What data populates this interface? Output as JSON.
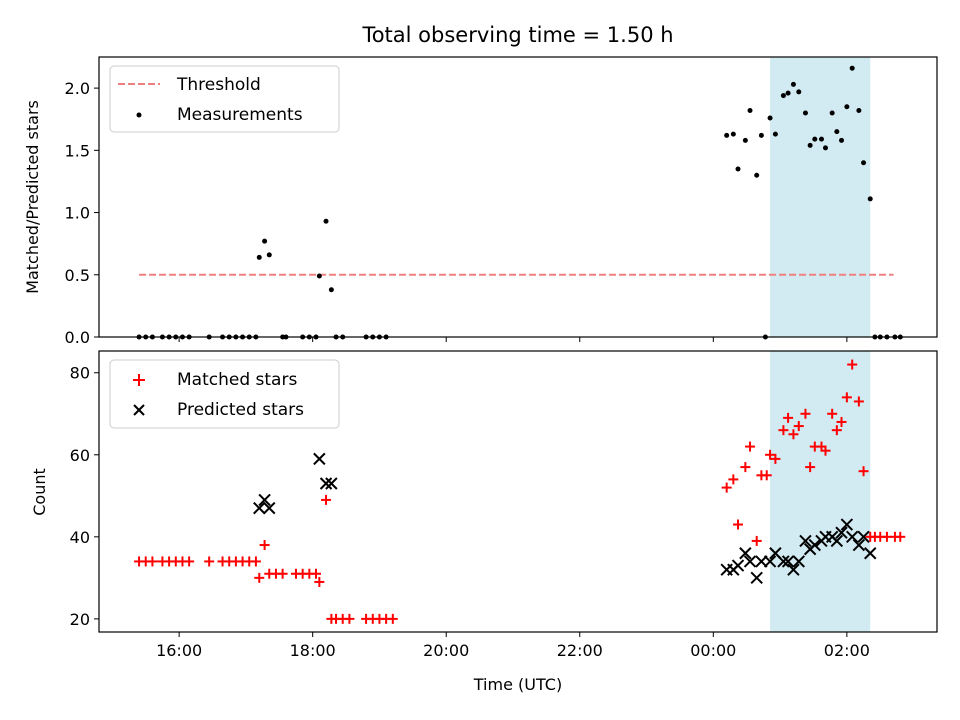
{
  "chart_data": [
    {
      "type": "scatter",
      "title": "Total observing time = 1.50 h",
      "ylabel": "Matched/Predicted stars",
      "xlabel": "",
      "xlim": [
        14.8,
        27.35
      ],
      "ylim": [
        0,
        2.25
      ],
      "yticks": [
        "0.0",
        "0.5",
        "1.0",
        "1.5",
        "2.0"
      ],
      "ytick_values": [
        0,
        0.5,
        1.0,
        1.5,
        2.0
      ],
      "legend_position": "upper-left",
      "threshold": {
        "name": "Threshold",
        "value": 0.5,
        "x_range": [
          15.4,
          26.7
        ],
        "color": "#f08080"
      },
      "highlight": {
        "x_range": [
          24.85,
          26.35
        ],
        "color": "#add8e6"
      },
      "series": [
        {
          "name": "Measurements",
          "color": "#000000",
          "points": [
            [
              15.4,
              0
            ],
            [
              15.5,
              0
            ],
            [
              15.6,
              0
            ],
            [
              15.75,
              0
            ],
            [
              15.85,
              0
            ],
            [
              15.95,
              0
            ],
            [
              16.05,
              0
            ],
            [
              16.15,
              0
            ],
            [
              16.45,
              0
            ],
            [
              16.65,
              0
            ],
            [
              16.75,
              0
            ],
            [
              16.85,
              0
            ],
            [
              16.95,
              0
            ],
            [
              17.05,
              0
            ],
            [
              17.15,
              0
            ],
            [
              17.2,
              0.64
            ],
            [
              17.28,
              0.77
            ],
            [
              17.35,
              0.66
            ],
            [
              17.55,
              0
            ],
            [
              17.6,
              0
            ],
            [
              17.85,
              0
            ],
            [
              17.95,
              0
            ],
            [
              18.05,
              0
            ],
            [
              18.1,
              0.49
            ],
            [
              18.2,
              0.93
            ],
            [
              18.28,
              0.38
            ],
            [
              18.35,
              0
            ],
            [
              18.45,
              0
            ],
            [
              18.8,
              0
            ],
            [
              18.9,
              0
            ],
            [
              19.0,
              0
            ],
            [
              19.1,
              0
            ],
            [
              24.2,
              1.62
            ],
            [
              24.3,
              1.63
            ],
            [
              24.37,
              1.35
            ],
            [
              24.48,
              1.58
            ],
            [
              24.55,
              1.82
            ],
            [
              24.65,
              1.3
            ],
            [
              24.72,
              1.62
            ],
            [
              24.78,
              0
            ],
            [
              24.85,
              1.76
            ],
            [
              24.93,
              1.63
            ],
            [
              25.05,
              1.94
            ],
            [
              25.12,
              1.96
            ],
            [
              25.2,
              2.03
            ],
            [
              25.28,
              1.97
            ],
            [
              25.38,
              1.8
            ],
            [
              25.45,
              1.54
            ],
            [
              25.52,
              1.59
            ],
            [
              25.62,
              1.59
            ],
            [
              25.68,
              1.52
            ],
            [
              25.78,
              1.8
            ],
            [
              25.85,
              1.65
            ],
            [
              25.92,
              1.58
            ],
            [
              26.0,
              1.85
            ],
            [
              26.08,
              2.16
            ],
            [
              26.18,
              1.82
            ],
            [
              26.25,
              1.4
            ],
            [
              26.35,
              1.11
            ],
            [
              26.42,
              0
            ],
            [
              26.5,
              0
            ],
            [
              26.6,
              0
            ],
            [
              26.72,
              0
            ],
            [
              26.8,
              0
            ]
          ]
        }
      ]
    },
    {
      "type": "scatter",
      "title": "",
      "ylabel": "Count",
      "xlabel": "Time (UTC)",
      "xlim": [
        14.8,
        27.35
      ],
      "ylim": [
        16.8,
        85.3
      ],
      "yticks": [
        "20",
        "40",
        "60",
        "80"
      ],
      "ytick_values": [
        20,
        40,
        60,
        80
      ],
      "xticks": [
        "16:00",
        "18:00",
        "20:00",
        "22:00",
        "00:00",
        "02:00"
      ],
      "xtick_values": [
        16,
        18,
        20,
        22,
        24,
        26
      ],
      "legend_position": "upper-left",
      "highlight": {
        "x_range": [
          24.85,
          26.35
        ],
        "color": "#add8e6"
      },
      "series": [
        {
          "name": "Matched stars",
          "color": "#ff0000",
          "marker": "plus",
          "points": [
            [
              15.4,
              34
            ],
            [
              15.5,
              34
            ],
            [
              15.6,
              34
            ],
            [
              15.75,
              34
            ],
            [
              15.85,
              34
            ],
            [
              15.95,
              34
            ],
            [
              16.05,
              34
            ],
            [
              16.15,
              34
            ],
            [
              16.45,
              34
            ],
            [
              16.65,
              34
            ],
            [
              16.75,
              34
            ],
            [
              16.85,
              34
            ],
            [
              16.95,
              34
            ],
            [
              17.05,
              34
            ],
            [
              17.15,
              34
            ],
            [
              17.2,
              30
            ],
            [
              17.28,
              38
            ],
            [
              17.35,
              31
            ],
            [
              17.45,
              31
            ],
            [
              17.55,
              31
            ],
            [
              17.75,
              31
            ],
            [
              17.85,
              31
            ],
            [
              17.95,
              31
            ],
            [
              18.05,
              31
            ],
            [
              18.1,
              29
            ],
            [
              18.2,
              49
            ],
            [
              18.28,
              20
            ],
            [
              18.35,
              20
            ],
            [
              18.45,
              20
            ],
            [
              18.55,
              20
            ],
            [
              18.8,
              20
            ],
            [
              18.9,
              20
            ],
            [
              19.0,
              20
            ],
            [
              19.1,
              20
            ],
            [
              19.2,
              20
            ],
            [
              24.2,
              52
            ],
            [
              24.3,
              54
            ],
            [
              24.37,
              43
            ],
            [
              24.48,
              57
            ],
            [
              24.55,
              62
            ],
            [
              24.65,
              39
            ],
            [
              24.72,
              55
            ],
            [
              24.8,
              55
            ],
            [
              24.85,
              60
            ],
            [
              24.93,
              59
            ],
            [
              25.05,
              66
            ],
            [
              25.12,
              69
            ],
            [
              25.2,
              65
            ],
            [
              25.28,
              67
            ],
            [
              25.38,
              70
            ],
            [
              25.45,
              57
            ],
            [
              25.52,
              62
            ],
            [
              25.62,
              62
            ],
            [
              25.68,
              61
            ],
            [
              25.78,
              70
            ],
            [
              25.85,
              66
            ],
            [
              25.92,
              68
            ],
            [
              26.0,
              74
            ],
            [
              26.08,
              82
            ],
            [
              26.18,
              73
            ],
            [
              26.25,
              56
            ],
            [
              26.35,
              40
            ],
            [
              26.42,
              40
            ],
            [
              26.5,
              40
            ],
            [
              26.6,
              40
            ],
            [
              26.72,
              40
            ],
            [
              26.8,
              40
            ]
          ]
        },
        {
          "name": "Predicted stars",
          "color": "#000000",
          "marker": "x",
          "points": [
            [
              17.2,
              47
            ],
            [
              17.28,
              49
            ],
            [
              17.35,
              47
            ],
            [
              18.1,
              59
            ],
            [
              18.2,
              53
            ],
            [
              18.28,
              53
            ],
            [
              24.2,
              32
            ],
            [
              24.3,
              32
            ],
            [
              24.37,
              33
            ],
            [
              24.48,
              36
            ],
            [
              24.55,
              34
            ],
            [
              24.65,
              30
            ],
            [
              24.72,
              34
            ],
            [
              24.85,
              34
            ],
            [
              24.93,
              36
            ],
            [
              25.05,
              34
            ],
            [
              25.12,
              34
            ],
            [
              25.2,
              32
            ],
            [
              25.28,
              34
            ],
            [
              25.38,
              39
            ],
            [
              25.45,
              37
            ],
            [
              25.52,
              38
            ],
            [
              25.62,
              39
            ],
            [
              25.68,
              40
            ],
            [
              25.78,
              40
            ],
            [
              25.85,
              39
            ],
            [
              25.92,
              41
            ],
            [
              26.0,
              43
            ],
            [
              26.08,
              40
            ],
            [
              26.18,
              38
            ],
            [
              26.25,
              40
            ],
            [
              26.35,
              36
            ]
          ]
        }
      ]
    }
  ]
}
